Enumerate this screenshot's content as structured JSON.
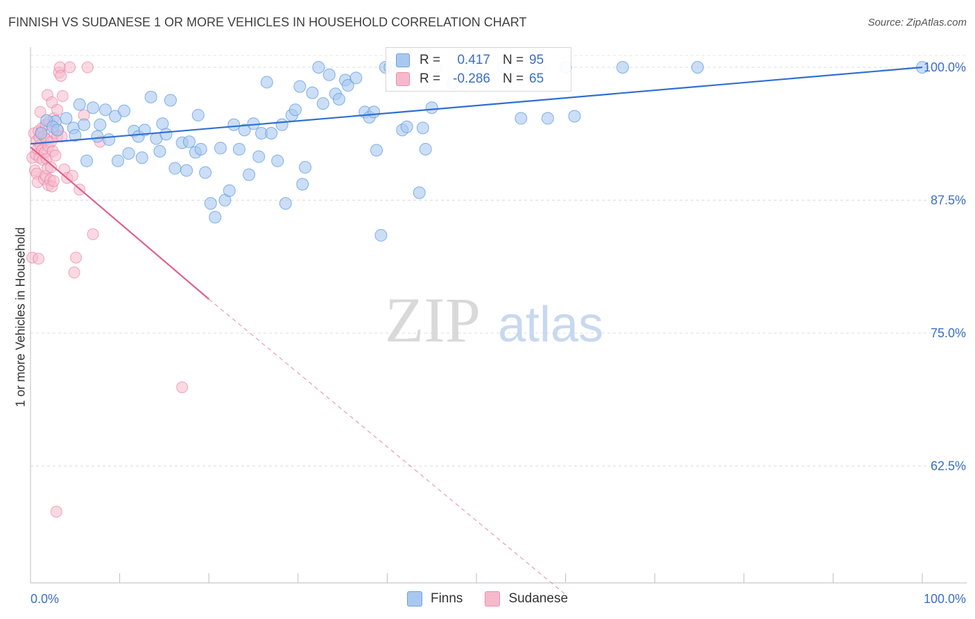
{
  "header": {
    "title": "FINNISH VS SUDANESE 1 OR MORE VEHICLES IN HOUSEHOLD CORRELATION CHART",
    "source": "Source: ZipAtlas.com"
  },
  "watermark": {
    "zip": "ZIP",
    "atlas": "atlas"
  },
  "legend": {
    "rows": [
      {
        "r_label": "R =",
        "r_value": "0.417",
        "n_label": "N =",
        "n_value": "95",
        "color": "#a9c8f0"
      },
      {
        "r_label": "R =",
        "r_value": "-0.286",
        "n_label": "N =",
        "n_value": "65",
        "color": "#f6b9cc"
      }
    ]
  },
  "bottom_legend": [
    {
      "label": "Finns",
      "color": "#a9c8f0"
    },
    {
      "label": "Sudanese",
      "color": "#f6b9cc"
    }
  ],
  "chart_data": {
    "type": "scatter",
    "title": "FINNISH VS SUDANESE 1 OR MORE VEHICLES IN HOUSEHOLD CORRELATION CHART",
    "xlabel": "",
    "ylabel": "1 or more Vehicles in Household",
    "x_ticks": [
      "0.0%",
      "100.0%"
    ],
    "y_ticks": [
      "100.0%",
      "87.5%",
      "75.0%",
      "62.5%"
    ],
    "y_tick_values": [
      100,
      87.5,
      75,
      62.5
    ],
    "xlim": [
      0,
      100
    ],
    "ylim": [
      50.5,
      102.6
    ],
    "grid": true,
    "legend_position": "top-center",
    "series": [
      {
        "name": "Finns",
        "color": "#5b9be0",
        "fill": "#a9c8f0",
        "trend": {
          "x": [
            0,
            100
          ],
          "y": [
            92.8,
            100
          ]
        },
        "points": [
          [
            1.2,
            93.8
          ],
          [
            2.8,
            94.9
          ],
          [
            1.8,
            95.0
          ],
          [
            2.5,
            94.4
          ],
          [
            4.0,
            95.2
          ],
          [
            4.8,
            94.3
          ],
          [
            3.0,
            94.1
          ],
          [
            5.0,
            93.6
          ],
          [
            5.5,
            96.5
          ],
          [
            6.0,
            94.6
          ],
          [
            6.3,
            91.2
          ],
          [
            7.0,
            96.2
          ],
          [
            7.5,
            93.5
          ],
          [
            7.8,
            94.6
          ],
          [
            8.4,
            96.0
          ],
          [
            8.8,
            93.2
          ],
          [
            9.5,
            95.4
          ],
          [
            9.8,
            91.2
          ],
          [
            10.5,
            95.9
          ],
          [
            11.0,
            91.9
          ],
          [
            11.6,
            94.0
          ],
          [
            12.1,
            93.5
          ],
          [
            12.5,
            91.5
          ],
          [
            12.8,
            94.1
          ],
          [
            13.5,
            97.2
          ],
          [
            14.1,
            93.3
          ],
          [
            14.5,
            92.1
          ],
          [
            14.8,
            94.7
          ],
          [
            15.2,
            93.7
          ],
          [
            15.7,
            96.9
          ],
          [
            16.2,
            90.5
          ],
          [
            17.0,
            92.9
          ],
          [
            17.5,
            90.3
          ],
          [
            17.8,
            93.0
          ],
          [
            18.5,
            92.0
          ],
          [
            18.8,
            95.5
          ],
          [
            19.1,
            92.3
          ],
          [
            19.6,
            90.1
          ],
          [
            20.2,
            87.2
          ],
          [
            20.7,
            85.9
          ],
          [
            21.3,
            92.4
          ],
          [
            21.8,
            87.5
          ],
          [
            22.3,
            88.4
          ],
          [
            22.8,
            94.6
          ],
          [
            23.4,
            92.3
          ],
          [
            24.0,
            94.1
          ],
          [
            24.5,
            89.9
          ],
          [
            25.0,
            94.7
          ],
          [
            25.6,
            91.6
          ],
          [
            25.9,
            93.8
          ],
          [
            26.5,
            98.6
          ],
          [
            27.0,
            93.8
          ],
          [
            27.7,
            91.2
          ],
          [
            28.2,
            94.6
          ],
          [
            28.6,
            87.2
          ],
          [
            29.3,
            95.5
          ],
          [
            29.7,
            96.0
          ],
          [
            30.2,
            98.2
          ],
          [
            30.5,
            89.0
          ],
          [
            30.8,
            90.6
          ],
          [
            31.6,
            97.6
          ],
          [
            32.3,
            100.0
          ],
          [
            32.8,
            96.6
          ],
          [
            33.5,
            99.3
          ],
          [
            34.2,
            97.5
          ],
          [
            34.6,
            97.0
          ],
          [
            35.3,
            98.8
          ],
          [
            35.6,
            98.3
          ],
          [
            36.5,
            99.0
          ],
          [
            37.5,
            95.8
          ],
          [
            38.0,
            95.3
          ],
          [
            38.5,
            95.8
          ],
          [
            38.8,
            92.2
          ],
          [
            39.3,
            84.2
          ],
          [
            39.8,
            100.0
          ],
          [
            40.3,
            100.0
          ],
          [
            40.8,
            99.8
          ],
          [
            41.7,
            94.1
          ],
          [
            42.2,
            94.4
          ],
          [
            43.6,
            88.2
          ],
          [
            44.0,
            94.3
          ],
          [
            44.3,
            92.3
          ],
          [
            45.0,
            96.2
          ],
          [
            45.5,
            100.0
          ],
          [
            47.4,
            98.5
          ],
          [
            49.4,
            100.0
          ],
          [
            50.0,
            99.6
          ],
          [
            53.0,
            100.0
          ],
          [
            55.0,
            95.2
          ],
          [
            57.0,
            100.0
          ],
          [
            58.0,
            95.2
          ],
          [
            60.0,
            100.0
          ],
          [
            61.0,
            95.4
          ],
          [
            66.4,
            100.0
          ],
          [
            74.8,
            100.0
          ],
          [
            100.0,
            100.0
          ]
        ]
      },
      {
        "name": "Sudanese",
        "color": "#e8739a",
        "fill": "#f6b9cc",
        "trend": {
          "x": [
            0,
            20
          ],
          "y": [
            92.5,
            78.2
          ]
        },
        "trend_dashed": {
          "x": [
            20,
            60
          ],
          "y": [
            78.2,
            50.4
          ]
        },
        "points": [
          [
            0.2,
            91.5
          ],
          [
            0.2,
            82.1
          ],
          [
            0.4,
            93.8
          ],
          [
            0.5,
            90.3
          ],
          [
            0.6,
            91.8
          ],
          [
            0.7,
            90.0
          ],
          [
            0.7,
            93.1
          ],
          [
            0.8,
            89.2
          ],
          [
            0.8,
            92.3
          ],
          [
            0.9,
            82.0
          ],
          [
            0.9,
            94.0
          ],
          [
            1.0,
            91.5
          ],
          [
            1.0,
            93.4
          ],
          [
            1.1,
            92.7
          ],
          [
            1.1,
            95.8
          ],
          [
            1.2,
            93.9
          ],
          [
            1.3,
            92.2
          ],
          [
            1.3,
            94.3
          ],
          [
            1.4,
            91.3
          ],
          [
            1.5,
            93.5
          ],
          [
            1.5,
            89.5
          ],
          [
            1.6,
            92.0
          ],
          [
            1.7,
            94.6
          ],
          [
            1.7,
            89.8
          ],
          [
            1.8,
            91.4
          ],
          [
            1.8,
            93.2
          ],
          [
            1.9,
            97.4
          ],
          [
            1.9,
            90.5
          ],
          [
            2.0,
            88.9
          ],
          [
            2.0,
            92.6
          ],
          [
            2.1,
            94.9
          ],
          [
            2.2,
            89.4
          ],
          [
            2.3,
            93.0
          ],
          [
            2.3,
            90.6
          ],
          [
            2.4,
            88.8
          ],
          [
            2.4,
            96.7
          ],
          [
            2.5,
            92.1
          ],
          [
            2.6,
            89.3
          ],
          [
            2.6,
            95.2
          ],
          [
            2.7,
            93.8
          ],
          [
            2.8,
            91.7
          ],
          [
            2.9,
            58.2
          ],
          [
            3.0,
            96.0
          ],
          [
            3.0,
            93.5
          ],
          [
            3.1,
            94.1
          ],
          [
            3.2,
            99.5
          ],
          [
            3.3,
            100.0
          ],
          [
            3.4,
            99.2
          ],
          [
            3.5,
            93.5
          ],
          [
            3.6,
            97.3
          ],
          [
            3.8,
            90.4
          ],
          [
            4.1,
            89.6
          ],
          [
            4.4,
            100.0
          ],
          [
            4.7,
            89.8
          ],
          [
            4.9,
            80.7
          ],
          [
            5.1,
            82.1
          ],
          [
            5.5,
            88.5
          ],
          [
            6.0,
            95.5
          ],
          [
            6.4,
            100.0
          ],
          [
            7.0,
            84.3
          ],
          [
            7.8,
            93.0
          ],
          [
            17.0,
            69.9
          ]
        ]
      }
    ]
  }
}
